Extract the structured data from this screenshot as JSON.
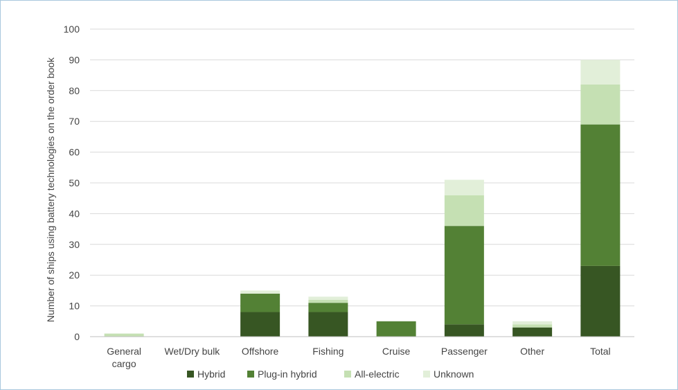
{
  "chart_data": {
    "type": "bar",
    "stacked": true,
    "title": "",
    "xlabel": "",
    "ylabel": "Number of ships using battery technologies on the order book",
    "ylim": [
      0,
      100
    ],
    "yticks": [
      0,
      10,
      20,
      30,
      40,
      50,
      60,
      70,
      80,
      90,
      100
    ],
    "grid": true,
    "legend_position": "bottom",
    "categories": [
      [
        "General",
        "cargo"
      ],
      [
        "Wet/Dry bulk"
      ],
      [
        "Offshore"
      ],
      [
        "Fishing"
      ],
      [
        "Cruise"
      ],
      [
        "Passenger"
      ],
      [
        "Other"
      ],
      [
        "Total"
      ]
    ],
    "series": [
      {
        "name": "Hybrid",
        "color": "#375623",
        "values": [
          0,
          0,
          8,
          8,
          0,
          4,
          3,
          23
        ]
      },
      {
        "name": "Plug-in hybrid",
        "color": "#538135",
        "values": [
          0,
          0,
          6,
          3,
          5,
          32,
          0,
          46
        ]
      },
      {
        "name": "All-electric",
        "color": "#c5e0b3",
        "values": [
          1,
          0,
          0,
          1,
          0,
          10,
          1,
          13
        ]
      },
      {
        "name": "Unknown",
        "color": "#e2efd9",
        "values": [
          0,
          0,
          1,
          1,
          0,
          5,
          1,
          8
        ]
      }
    ]
  }
}
